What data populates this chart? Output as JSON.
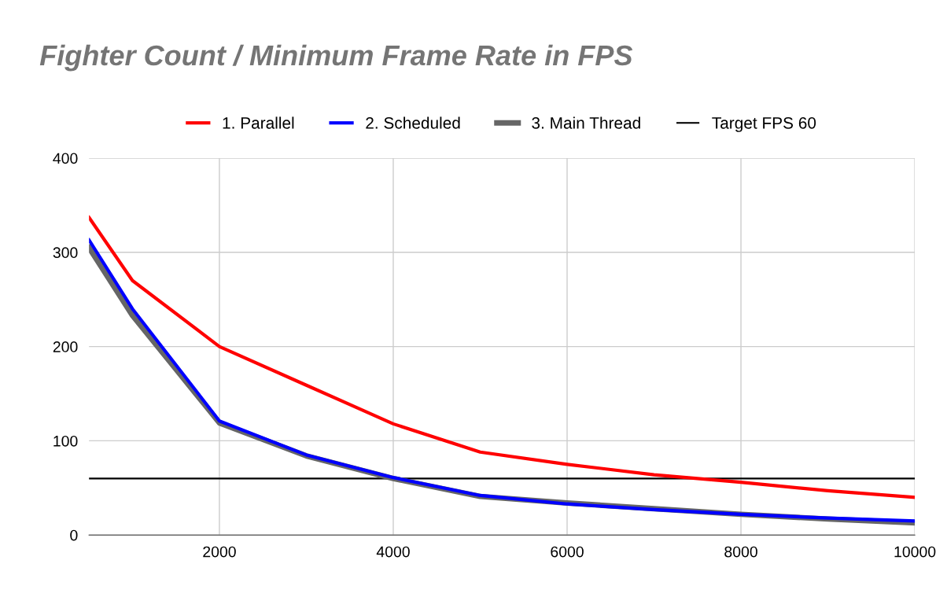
{
  "chart_data": {
    "type": "line",
    "title": "Fighter Count / Minimum Frame Rate in FPS",
    "x": [
      500,
      1000,
      2000,
      3000,
      4000,
      5000,
      6000,
      7000,
      8000,
      9000,
      10000
    ],
    "series": [
      {
        "name": "1. Parallel",
        "color": "#ff0000",
        "values": [
          337,
          270,
          200,
          159,
          118,
          88,
          75,
          64,
          56,
          47,
          40
        ]
      },
      {
        "name": "2. Scheduled",
        "color": "#0000ff",
        "values": [
          313,
          240,
          121,
          85,
          61,
          42,
          33,
          27,
          22,
          18,
          15
        ]
      },
      {
        "name": "3. Main Thread",
        "color": "#666666",
        "values": [
          305,
          233,
          119,
          84,
          60,
          41,
          34,
          28,
          22,
          17,
          13
        ]
      },
      {
        "name": "Target FPS 60",
        "color": "#000000",
        "values": [
          60,
          60,
          60,
          60,
          60,
          60,
          60,
          60,
          60,
          60,
          60
        ]
      }
    ],
    "xlim": [
      500,
      10000
    ],
    "xticks": [
      2000,
      4000,
      6000,
      8000,
      10000
    ],
    "ylim": [
      0,
      400
    ],
    "yticks": [
      0,
      100,
      200,
      300,
      400
    ],
    "grid": true,
    "legend": "top",
    "marker": "none",
    "line_style": "solid"
  }
}
